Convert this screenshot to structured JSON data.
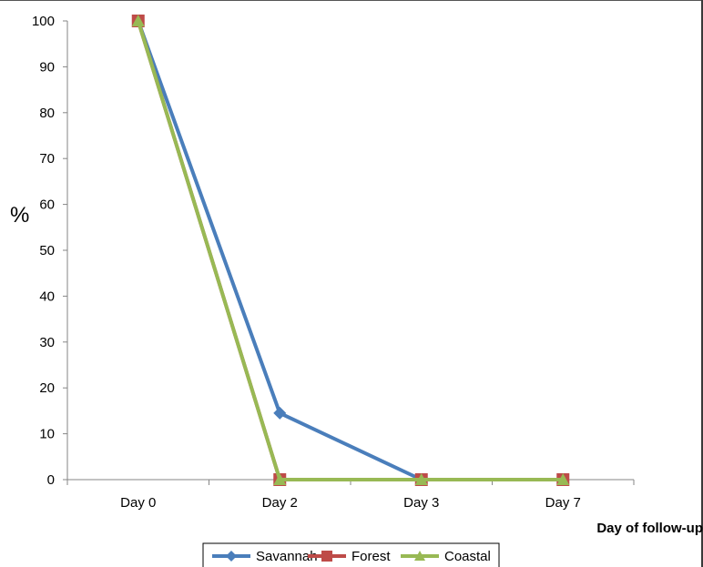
{
  "chart_data": {
    "type": "line",
    "categories": [
      "Day 0",
      "Day 2",
      "Day 3",
      "Day 7"
    ],
    "series": [
      {
        "name": "Savannah",
        "values": [
          100,
          14.5,
          0,
          0
        ],
        "color": "#4a7ebb",
        "marker": "diamond"
      },
      {
        "name": "Forest",
        "values": [
          100,
          0,
          0,
          0
        ],
        "color": "#be4b48",
        "marker": "square"
      },
      {
        "name": "Coastal",
        "values": [
          100,
          0,
          0,
          0
        ],
        "color": "#98b954",
        "marker": "triangle"
      }
    ],
    "ylabel": "%",
    "xlabel": "Day of follow-up",
    "ylim": [
      0,
      100
    ],
    "yticks": [
      0,
      10,
      20,
      30,
      40,
      50,
      60,
      70,
      80,
      90,
      100
    ],
    "legend_position": "bottom",
    "grid": false
  }
}
